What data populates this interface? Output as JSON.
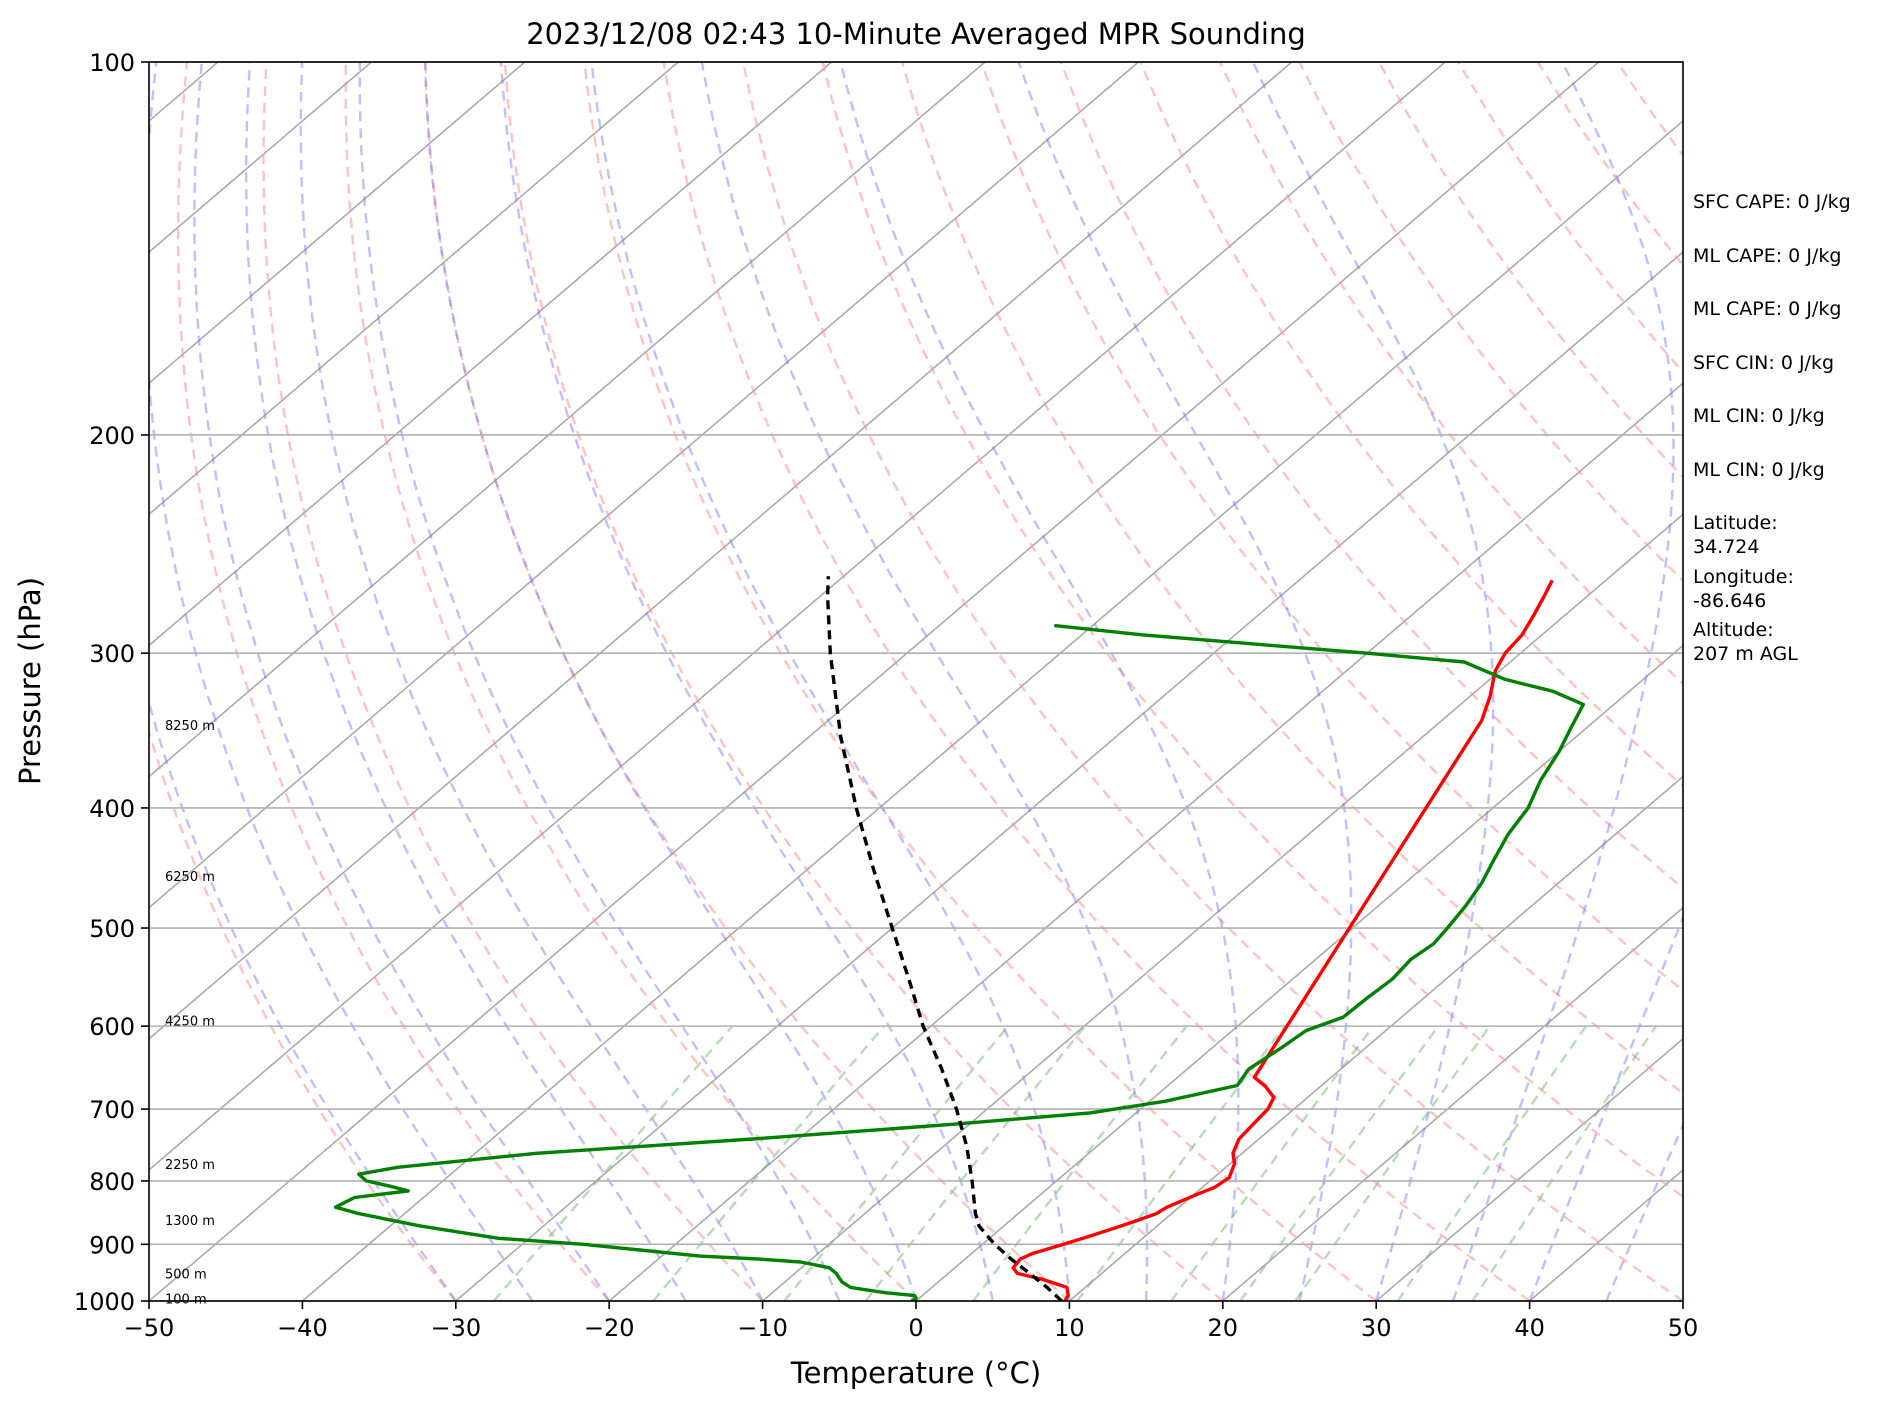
{
  "chart_data": {
    "type": "line",
    "title": "2023/12/08 02:43 10-Minute Averaged MPR Sounding",
    "xlabel": "Temperature (°C)",
    "ylabel": "Pressure (hPa)",
    "xlim": [
      -50,
      50
    ],
    "ylim": [
      1000,
      100
    ],
    "y_scale": "log",
    "x_ticks": [
      -50,
      -40,
      -30,
      -20,
      -10,
      0,
      10,
      20,
      30,
      40,
      50
    ],
    "x_tick_labels": [
      "−50",
      "−40",
      "−30",
      "−20",
      "−10",
      "0",
      "10",
      "20",
      "30",
      "40",
      "50"
    ],
    "y_ticks": [
      1000,
      900,
      800,
      700,
      600,
      500,
      400,
      300,
      200,
      100
    ],
    "y_tick_labels": [
      "1000",
      "900",
      "800",
      "700",
      "600",
      "500",
      "400",
      "300",
      "200",
      "100"
    ],
    "skew": true,
    "grid": true,
    "series": [
      {
        "role": "temperature",
        "color": "#ff0000",
        "points": [
          [
            1000,
            9.7
          ],
          [
            990,
            9.5
          ],
          [
            975,
            8.8
          ],
          [
            960,
            6.5
          ],
          [
            950,
            4.5
          ],
          [
            940,
            3.8
          ],
          [
            925,
            3.6
          ],
          [
            915,
            4.0
          ],
          [
            900,
            5.3
          ],
          [
            885,
            6.5
          ],
          [
            865,
            8.0
          ],
          [
            850,
            9.0
          ],
          [
            840,
            9.2
          ],
          [
            820,
            10.2
          ],
          [
            810,
            10.8
          ],
          [
            795,
            11.0
          ],
          [
            775,
            10.3
          ],
          [
            760,
            9.4
          ],
          [
            740,
            8.7
          ],
          [
            720,
            8.5
          ],
          [
            700,
            8.3
          ],
          [
            685,
            7.8
          ],
          [
            670,
            6.3
          ],
          [
            660,
            5.0
          ],
          [
            340,
            -7.4
          ],
          [
            325,
            -8.7
          ],
          [
            310,
            -10.3
          ],
          [
            300,
            -11.0
          ],
          [
            290,
            -11.3
          ],
          [
            280,
            -12.0
          ],
          [
            270,
            -12.8
          ],
          [
            262,
            -13.5
          ]
        ]
      },
      {
        "role": "dewpoint",
        "color": "#008000",
        "points": [
          [
            1000,
            -0.3
          ],
          [
            995,
            -0.2
          ],
          [
            990,
            -0.5
          ],
          [
            985,
            -2.5
          ],
          [
            980,
            -4.0
          ],
          [
            975,
            -5.3
          ],
          [
            965,
            -6.3
          ],
          [
            950,
            -7.3
          ],
          [
            940,
            -8.2
          ],
          [
            930,
            -10.5
          ],
          [
            925,
            -13.5
          ],
          [
            920,
            -17.5
          ],
          [
            900,
            -26.0
          ],
          [
            890,
            -32.0
          ],
          [
            870,
            -38.0
          ],
          [
            850,
            -43.0
          ],
          [
            840,
            -45.0
          ],
          [
            825,
            -44.5
          ],
          [
            815,
            -41.5
          ],
          [
            808,
            -43.0
          ],
          [
            800,
            -45.0
          ],
          [
            790,
            -46.0
          ],
          [
            780,
            -44.0
          ],
          [
            760,
            -36.0
          ],
          [
            740,
            -23.0
          ],
          [
            720,
            -11.0
          ],
          [
            705,
            -3.0
          ],
          [
            690,
            1.0
          ],
          [
            670,
            4.5
          ],
          [
            650,
            4.0
          ],
          [
            625,
            4.5
          ],
          [
            605,
            4.8
          ],
          [
            590,
            6.2
          ],
          [
            570,
            6.3
          ],
          [
            550,
            6.5
          ],
          [
            530,
            6.2
          ],
          [
            515,
            6.5
          ],
          [
            500,
            6.2
          ],
          [
            480,
            5.7
          ],
          [
            460,
            5.0
          ],
          [
            440,
            4.0
          ],
          [
            420,
            3.0
          ],
          [
            400,
            2.3
          ],
          [
            380,
            1.0
          ],
          [
            360,
            0.0
          ],
          [
            345,
            -1.0
          ],
          [
            330,
            -2.0
          ],
          [
            322,
            -5.0
          ],
          [
            315,
            -9.0
          ],
          [
            305,
            -13.0
          ],
          [
            300,
            -20.0
          ],
          [
            295,
            -28.0
          ],
          [
            290,
            -36.0
          ],
          [
            285,
            -42.5
          ]
        ]
      },
      {
        "role": "parcel",
        "color": "#000000",
        "dashed": true,
        "points": [
          [
            1000,
            9.5
          ],
          [
            975,
            7.5
          ],
          [
            950,
            5.3
          ],
          [
            925,
            3.0
          ],
          [
            900,
            0.8
          ],
          [
            875,
            -1.2
          ],
          [
            870,
            -1.6
          ],
          [
            850,
            -2.8
          ],
          [
            800,
            -5.5
          ],
          [
            750,
            -8.5
          ],
          [
            700,
            -12.0
          ],
          [
            650,
            -16.0
          ],
          [
            600,
            -20.5
          ],
          [
            550,
            -25.0
          ],
          [
            500,
            -30.0
          ],
          [
            450,
            -35.5
          ],
          [
            400,
            -41.5
          ],
          [
            350,
            -48.0
          ],
          [
            300,
            -55.0
          ],
          [
            270,
            -59.5
          ],
          [
            260,
            -61.0
          ]
        ]
      }
    ],
    "height_labels": [
      "100 m",
      "500 m",
      "1300 m",
      "2250 m",
      "4250 m",
      "6250 m",
      "8250 m"
    ],
    "height_label_pressures": [
      995,
      950,
      860,
      775,
      594,
      454,
      343
    ]
  },
  "stats": [
    "SFC CAPE: 0 J/kg",
    "ML CAPE: 0 J/kg",
    "ML CAPE: 0 J/kg",
    "SFC CIN: 0 J/kg",
    "ML CIN: 0 J/kg",
    "ML CIN: 0 J/kg",
    "Latitude:\n34.724",
    "Longitude:\n-86.646",
    "Altitude:\n207 m AGL"
  ]
}
